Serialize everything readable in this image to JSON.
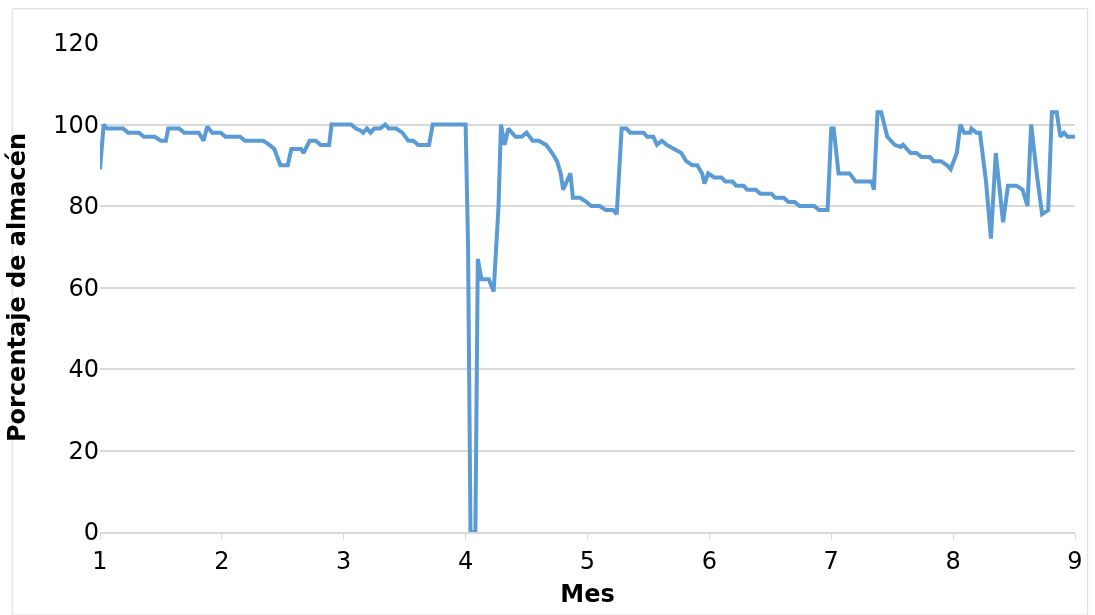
{
  "chart_data": {
    "type": "line",
    "xlabel": "Mes",
    "ylabel": "Porcentaje de almacén",
    "xlim": [
      1,
      9
    ],
    "xticks": [
      1,
      2,
      3,
      4,
      5,
      6,
      7,
      8,
      9
    ],
    "ylim": [
      0,
      120
    ],
    "yticks": [
      0,
      20,
      40,
      60,
      80,
      100,
      120
    ],
    "grid": "y",
    "marker": "none",
    "line_style": "solid",
    "series": [
      {
        "color": "#5b9bd5",
        "x": [
          1.0,
          1.03,
          1.06,
          1.19,
          1.23,
          1.32,
          1.36,
          1.45,
          1.5,
          1.54,
          1.56,
          1.65,
          1.69,
          1.81,
          1.85,
          1.88,
          1.92,
          1.99,
          2.03,
          2.15,
          2.19,
          2.34,
          2.39,
          2.43,
          2.48,
          2.54,
          2.57,
          2.65,
          2.67,
          2.72,
          2.77,
          2.81,
          2.88,
          2.9,
          3.06,
          3.1,
          3.14,
          3.16,
          3.19,
          3.22,
          3.25,
          3.3,
          3.34,
          3.37,
          3.43,
          3.48,
          3.53,
          3.57,
          3.61,
          3.7,
          3.73,
          4.0,
          4.02,
          4.04,
          4.08,
          4.1,
          4.13,
          4.19,
          4.23,
          4.27,
          4.29,
          4.32,
          4.35,
          4.41,
          4.46,
          4.5,
          4.55,
          4.6,
          4.66,
          4.71,
          4.75,
          4.78,
          4.8,
          4.83,
          4.86,
          4.88,
          4.94,
          4.99,
          5.03,
          5.1,
          5.15,
          5.21,
          5.24,
          5.28,
          5.32,
          5.35,
          5.46,
          5.49,
          5.54,
          5.57,
          5.61,
          5.65,
          5.71,
          5.77,
          5.81,
          5.86,
          5.9,
          5.94,
          5.96,
          5.99,
          6.04,
          6.1,
          6.13,
          6.19,
          6.22,
          6.28,
          6.31,
          6.38,
          6.42,
          6.51,
          6.54,
          6.61,
          6.65,
          6.7,
          6.74,
          6.86,
          6.9,
          6.97,
          7.0,
          7.02,
          7.06,
          7.15,
          7.2,
          7.33,
          7.35,
          7.38,
          7.41,
          7.46,
          7.52,
          7.57,
          7.59,
          7.65,
          7.7,
          7.74,
          7.81,
          7.84,
          7.9,
          7.95,
          7.98,
          8.03,
          8.06,
          8.09,
          8.14,
          8.15,
          8.19,
          8.22,
          8.27,
          8.31,
          8.35,
          8.41,
          8.45,
          8.52,
          8.57,
          8.61,
          8.64,
          8.69,
          8.73,
          8.78,
          8.81,
          8.85,
          8.88,
          8.91,
          8.94,
          9.0
        ],
        "values": [
          89,
          100,
          99,
          99,
          98,
          98,
          97,
          97,
          96,
          96,
          99,
          99,
          98,
          98,
          96,
          99.5,
          98,
          98,
          97,
          97,
          96,
          96,
          95,
          94,
          90,
          90,
          94,
          94,
          93,
          96,
          96,
          95,
          95,
          100,
          100,
          99,
          98.5,
          98,
          99,
          98,
          99,
          99,
          100,
          99,
          99,
          98,
          96,
          96,
          95,
          95,
          100,
          100,
          70,
          0,
          0,
          67,
          62,
          62,
          59,
          80,
          100,
          95,
          99,
          97,
          97,
          98,
          96,
          96,
          95,
          93,
          91,
          88,
          84,
          86,
          88,
          82,
          82,
          81,
          80,
          80,
          79,
          79,
          78,
          99,
          99,
          98,
          98,
          97,
          97,
          95,
          96,
          95,
          94,
          93,
          91,
          90,
          90,
          88,
          85.5,
          88,
          87,
          87,
          86,
          86,
          85,
          85,
          84,
          84,
          83,
          83,
          82,
          82,
          81,
          81,
          80,
          80,
          79,
          79,
          99,
          99,
          88,
          88,
          86,
          86,
          84,
          103,
          103,
          97,
          95,
          94.5,
          95,
          93,
          93,
          92,
          92,
          91,
          91,
          90,
          89,
          93,
          100,
          98,
          98,
          99,
          98,
          98,
          86,
          72,
          93,
          76,
          85,
          85,
          84,
          80,
          100,
          87,
          78,
          79,
          103,
          103,
          97,
          98,
          97,
          97
        ]
      }
    ]
  }
}
